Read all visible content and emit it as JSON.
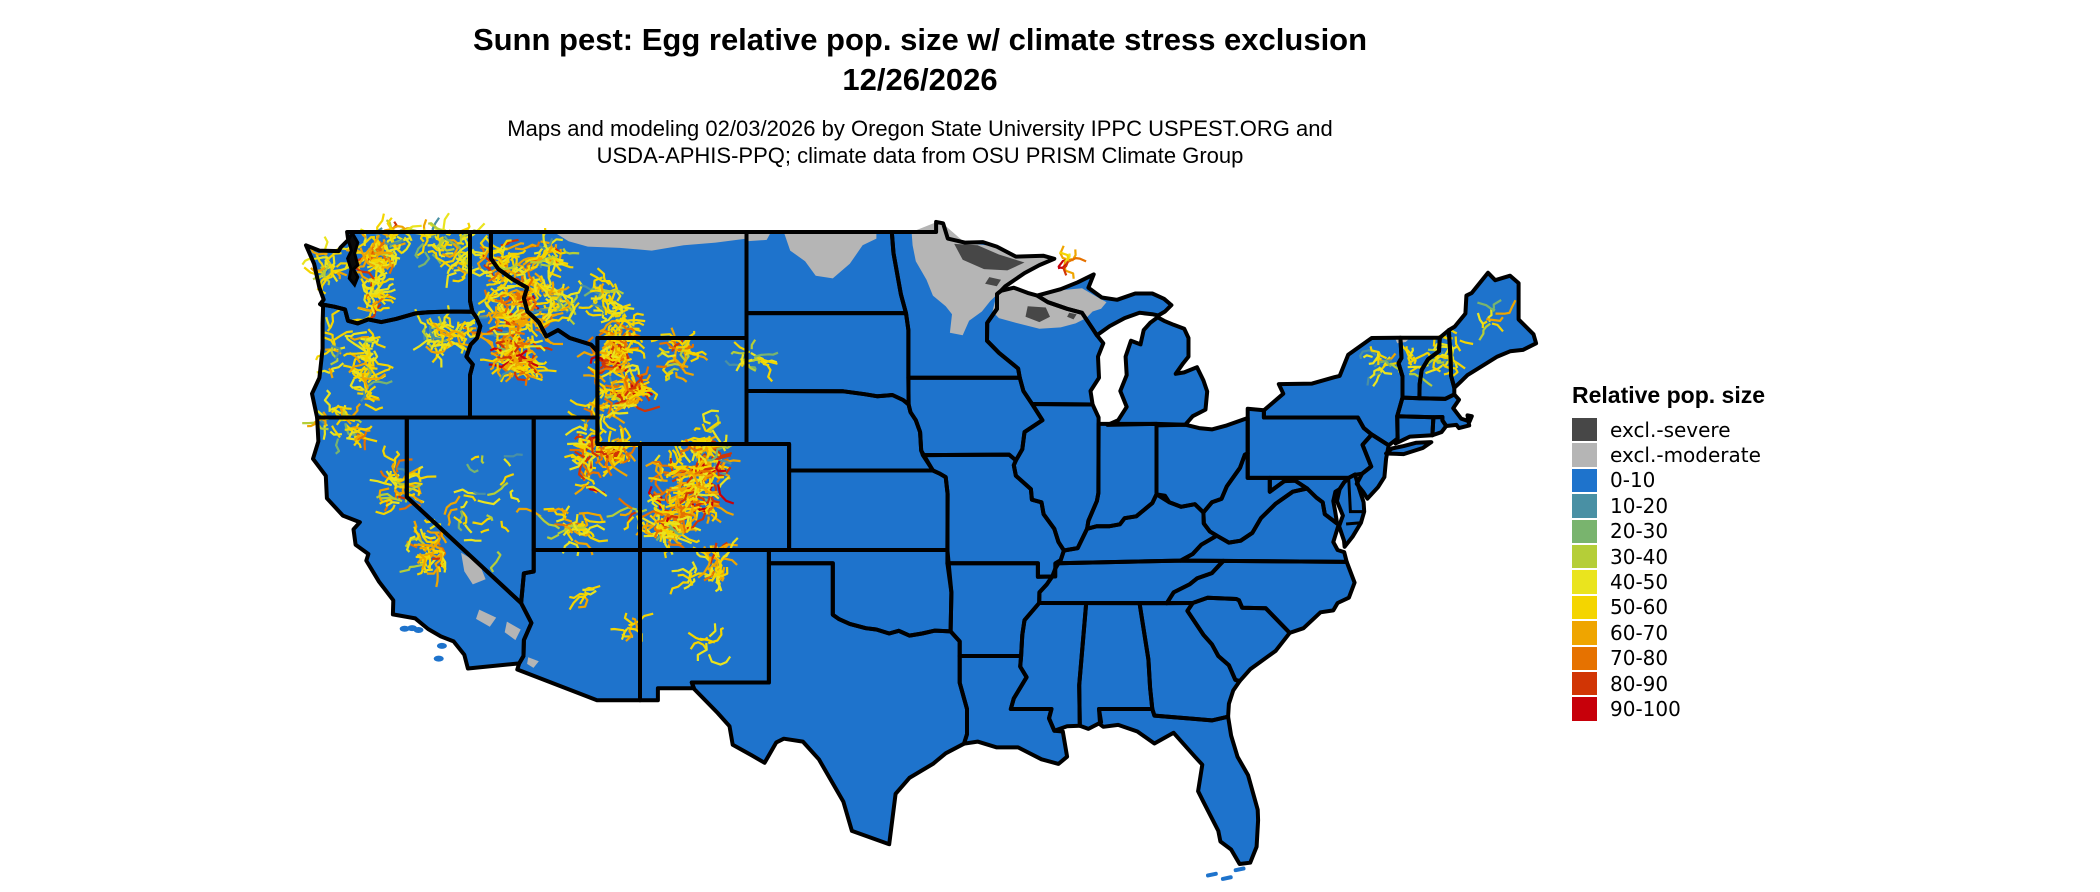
{
  "header": {
    "title_line1": "Sunn pest: Egg relative pop. size w/ climate stress exclusion",
    "title_line2": "12/26/2026",
    "subtitle_line1": "Maps and modeling 02/03/2026 by Oregon State University IPPC USPEST.ORG and",
    "subtitle_line2": "USDA-APHIS-PPQ; climate data from OSU PRISM Climate Group"
  },
  "legend": {
    "title": "Relative pop. size",
    "entries": [
      {
        "label": "excl.-severe",
        "color": "#474747"
      },
      {
        "label": "excl.-moderate",
        "color": "#b5b5b5"
      },
      {
        "label": "0-10",
        "color": "#1e73cc"
      },
      {
        "label": "10-20",
        "color": "#4990a4"
      },
      {
        "label": "20-30",
        "color": "#79b46e"
      },
      {
        "label": "30-40",
        "color": "#b5ce38"
      },
      {
        "label": "40-50",
        "color": "#eae41e"
      },
      {
        "label": "50-60",
        "color": "#f4d500"
      },
      {
        "label": "60-70",
        "color": "#efa500"
      },
      {
        "label": "70-80",
        "color": "#e67200"
      },
      {
        "label": "80-90",
        "color": "#d13505"
      },
      {
        "label": "90-100",
        "color": "#c7000a"
      }
    ]
  },
  "map": {
    "seed": 20261226,
    "land_color": "#1e73cc",
    "border_color": "#000000",
    "water_color": "#ffffff",
    "moderate_color": "#b5b5b5",
    "severe_color": "#474747",
    "exclusion_moderate": [
      [
        [
          -96.3,
          49.0
        ],
        [
          -95.15,
          49.37
        ],
        [
          -94.8,
          49.3
        ],
        [
          -93.8,
          48.6
        ],
        [
          -92.3,
          48.45
        ],
        [
          -91.4,
          48.07
        ],
        [
          -90.1,
          48.1
        ],
        [
          -89.63,
          48.0
        ],
        [
          -90.1,
          47.8
        ],
        [
          -90.9,
          47.45
        ],
        [
          -91.9,
          46.95
        ],
        [
          -92.2,
          46.7
        ],
        [
          -92.6,
          46.4
        ],
        [
          -93.0,
          46.0
        ],
        [
          -93.6,
          45.65
        ],
        [
          -93.9,
          45.1
        ],
        [
          -94.5,
          45.2
        ],
        [
          -94.4,
          45.9
        ],
        [
          -94.7,
          46.2
        ],
        [
          -95.3,
          46.6
        ],
        [
          -95.6,
          47.2
        ],
        [
          -96.1,
          47.9
        ],
        [
          -96.25,
          48.5
        ]
      ],
      [
        [
          -92.2,
          46.7
        ],
        [
          -92.35,
          46.5
        ],
        [
          -92.5,
          46.0
        ],
        [
          -92.2,
          45.75
        ],
        [
          -91.3,
          45.55
        ],
        [
          -90.3,
          45.35
        ],
        [
          -89.3,
          45.4
        ],
        [
          -88.6,
          45.55
        ],
        [
          -88.1,
          45.75
        ],
        [
          -87.8,
          46.0
        ],
        [
          -87.4,
          46.1
        ],
        [
          -87.15,
          46.35
        ],
        [
          -87.6,
          46.55
        ],
        [
          -88.3,
          46.88
        ],
        [
          -89.3,
          46.8
        ],
        [
          -90.35,
          46.58
        ],
        [
          -91.0,
          46.72
        ],
        [
          -91.6,
          46.87
        ],
        [
          -92.1,
          46.76
        ]
      ],
      [
        [
          -102.3,
          49.0
        ],
        [
          -97.95,
          49.0
        ],
        [
          -97.95,
          48.75
        ],
        [
          -98.6,
          48.5
        ],
        [
          -99.2,
          47.8
        ],
        [
          -100.0,
          47.25
        ],
        [
          -100.8,
          47.35
        ],
        [
          -101.3,
          47.9
        ],
        [
          -102.0,
          48.3
        ]
      ],
      [
        [
          -104.05,
          49.0
        ],
        [
          -102.9,
          49.0
        ],
        [
          -103.1,
          48.7
        ],
        [
          -104.05,
          48.65
        ]
      ],
      [
        [
          -113.1,
          49.0
        ],
        [
          -104.05,
          49.0
        ],
        [
          -104.05,
          48.75
        ],
        [
          -105.5,
          48.6
        ],
        [
          -107.0,
          48.5
        ],
        [
          -108.5,
          48.3
        ],
        [
          -110.0,
          48.4
        ],
        [
          -111.5,
          48.45
        ],
        [
          -112.4,
          48.65
        ]
      ],
      [
        [
          -117.45,
          36.9
        ],
        [
          -116.6,
          36.5
        ],
        [
          -116.3,
          35.9
        ],
        [
          -116.9,
          35.7
        ],
        [
          -117.3,
          36.2
        ]
      ],
      [
        [
          -116.6,
          34.75
        ],
        [
          -115.8,
          34.45
        ],
        [
          -116.1,
          34.1
        ],
        [
          -116.75,
          34.4
        ]
      ],
      [
        [
          -115.3,
          34.3
        ],
        [
          -114.65,
          34.0
        ],
        [
          -114.9,
          33.6
        ],
        [
          -115.4,
          33.9
        ]
      ],
      [
        [
          -114.3,
          32.95
        ],
        [
          -113.8,
          32.8
        ],
        [
          -114.05,
          32.55
        ],
        [
          -114.35,
          32.7
        ]
      ],
      [
        [
          -73.6,
          45.0
        ],
        [
          -72.9,
          45.0
        ],
        [
          -73.1,
          44.85
        ],
        [
          -73.5,
          44.8
        ]
      ]
    ],
    "exclusion_severe": [
      [
        [
          -94.3,
          48.55
        ],
        [
          -93.2,
          48.5
        ],
        [
          -92.2,
          48.15
        ],
        [
          -91.0,
          47.85
        ],
        [
          -91.8,
          47.55
        ],
        [
          -92.9,
          47.6
        ],
        [
          -93.9,
          47.95
        ]
      ],
      [
        [
          -92.65,
          47.3
        ],
        [
          -92.1,
          47.2
        ],
        [
          -92.3,
          46.95
        ],
        [
          -92.85,
          47.05
        ]
      ],
      [
        [
          -90.85,
          46.2
        ],
        [
          -90.0,
          46.15
        ],
        [
          -89.8,
          45.8
        ],
        [
          -90.3,
          45.6
        ],
        [
          -90.95,
          45.8
        ]
      ],
      [
        [
          -88.9,
          45.95
        ],
        [
          -88.55,
          45.9
        ],
        [
          -88.7,
          45.7
        ],
        [
          -89.0,
          45.8
        ]
      ]
    ],
    "speckle_palettes": {
      "cool": [
        [
          "#f4d500",
          0.4
        ],
        [
          "#eae41e",
          0.3
        ],
        [
          "#efa500",
          0.12
        ],
        [
          "#b5ce38",
          0.1
        ],
        [
          "#4990a4",
          0.05
        ],
        [
          "#79b46e",
          0.03
        ]
      ],
      "mid": [
        [
          "#f4d500",
          0.38
        ],
        [
          "#eae41e",
          0.22
        ],
        [
          "#efa500",
          0.2
        ],
        [
          "#e67200",
          0.1
        ],
        [
          "#b5ce38",
          0.05
        ],
        [
          "#d13505",
          0.03
        ],
        [
          "#4990a4",
          0.02
        ]
      ],
      "warm": [
        [
          "#f4d500",
          0.3
        ],
        [
          "#eae41e",
          0.15
        ],
        [
          "#efa500",
          0.25
        ],
        [
          "#e67200",
          0.15
        ],
        [
          "#d13505",
          0.08
        ],
        [
          "#c7000a",
          0.04
        ],
        [
          "#4990a4",
          0.015
        ],
        [
          "#79b46e",
          0.015
        ]
      ]
    },
    "speckle_clusters": [
      {
        "lon": -123.65,
        "lat": 47.75,
        "rlon": 0.45,
        "rlat": 0.5,
        "n": 26,
        "type": "cool"
      },
      {
        "lon": -121.35,
        "lat": 48.3,
        "rlon": 0.75,
        "rlat": 0.8,
        "n": 65,
        "type": "mid"
      },
      {
        "lon": -121.6,
        "lat": 46.6,
        "rlon": 0.45,
        "rlat": 0.7,
        "n": 35,
        "type": "mid"
      },
      {
        "lon": -120.3,
        "lat": 48.9,
        "rlon": 0.5,
        "rlat": 0.25,
        "n": 15,
        "type": "cool"
      },
      {
        "lon": -118.35,
        "lat": 48.6,
        "rlon": 1.15,
        "rlat": 0.5,
        "n": 38,
        "type": "cool"
      },
      {
        "lon": -117.5,
        "lat": 47.55,
        "rlon": 0.5,
        "rlat": 0.4,
        "n": 14,
        "type": "cool"
      },
      {
        "lon": -118.5,
        "lat": 45.05,
        "rlon": 0.85,
        "rlat": 0.55,
        "n": 38,
        "type": "cool"
      },
      {
        "lon": -117.25,
        "lat": 45.25,
        "rlon": 0.4,
        "rlat": 0.3,
        "n": 18,
        "type": "mid"
      },
      {
        "lon": -121.9,
        "lat": 43.9,
        "rlon": 0.4,
        "rlat": 1.5,
        "n": 55,
        "type": "cool"
      },
      {
        "lon": -123.6,
        "lat": 44.6,
        "rlon": 0.35,
        "rlat": 1.0,
        "n": 14,
        "type": "cool"
      },
      {
        "lon": -123.25,
        "lat": 41.75,
        "rlon": 0.8,
        "rlat": 0.65,
        "n": 28,
        "type": "cool"
      },
      {
        "lon": -122.25,
        "lat": 41.3,
        "rlon": 0.3,
        "rlat": 0.25,
        "n": 9,
        "type": "mid"
      },
      {
        "lon": -120.4,
        "lat": 39.5,
        "rlon": 0.5,
        "rlat": 1.0,
        "n": 40,
        "type": "mid"
      },
      {
        "lon": -118.95,
        "lat": 37.1,
        "rlon": 0.75,
        "rlat": 1.05,
        "n": 45,
        "type": "mid"
      },
      {
        "lon": -116.3,
        "lat": 39.0,
        "rlon": 1.6,
        "rlat": 2.3,
        "n": 26,
        "type": "cool"
      },
      {
        "lon": -114.8,
        "lat": 46.1,
        "rlon": 1.5,
        "rlat": 1.7,
        "n": 140,
        "type": "warm",
        "core": true
      },
      {
        "lon": -114.9,
        "lat": 44.15,
        "rlon": 1.0,
        "rlat": 0.7,
        "n": 75,
        "type": "warm",
        "core": true
      },
      {
        "lon": -115.7,
        "lat": 47.9,
        "rlon": 0.8,
        "rlat": 0.7,
        "n": 45,
        "type": "mid"
      },
      {
        "lon": -113.3,
        "lat": 48.35,
        "rlon": 0.7,
        "rlat": 0.55,
        "n": 35,
        "type": "mid"
      },
      {
        "lon": -112.8,
        "lat": 46.5,
        "rlon": 0.8,
        "rlat": 0.6,
        "n": 30,
        "type": "cool"
      },
      {
        "lon": -110.8,
        "lat": 46.85,
        "rlon": 0.7,
        "rlat": 0.45,
        "n": 22,
        "type": "cool"
      },
      {
        "lon": -110.35,
        "lat": 45.85,
        "rlon": 0.5,
        "rlat": 0.4,
        "n": 20,
        "type": "mid"
      },
      {
        "lon": -109.7,
        "lat": 45.2,
        "rlon": 0.65,
        "rlat": 0.35,
        "n": 25,
        "type": "mid"
      },
      {
        "lon": -110.15,
        "lat": 44.3,
        "rlon": 0.8,
        "rlat": 0.7,
        "n": 60,
        "type": "warm",
        "core": true
      },
      {
        "lon": -109.45,
        "lat": 43.1,
        "rlon": 0.6,
        "rlat": 0.6,
        "n": 55,
        "type": "warm",
        "core": true
      },
      {
        "lon": -107.35,
        "lat": 44.35,
        "rlon": 0.5,
        "rlat": 0.7,
        "n": 32,
        "type": "mid"
      },
      {
        "lon": -110.7,
        "lat": 42.6,
        "rlon": 0.4,
        "rlat": 0.75,
        "n": 28,
        "type": "mid"
      },
      {
        "lon": -105.9,
        "lat": 41.35,
        "rlon": 0.4,
        "rlat": 0.5,
        "n": 14,
        "type": "cool"
      },
      {
        "lon": -103.85,
        "lat": 44.1,
        "rlon": 0.45,
        "rlat": 0.5,
        "n": 16,
        "type": "cool"
      },
      {
        "lon": -111.6,
        "lat": 40.6,
        "rlon": 0.35,
        "rlat": 1.25,
        "n": 48,
        "type": "warm"
      },
      {
        "lon": -110.45,
        "lat": 40.68,
        "rlon": 0.85,
        "rlat": 0.3,
        "n": 42,
        "type": "warm",
        "core": true
      },
      {
        "lon": -112.3,
        "lat": 37.95,
        "rlon": 0.85,
        "rlat": 0.65,
        "n": 28,
        "type": "mid"
      },
      {
        "lon": -109.25,
        "lat": 38.45,
        "rlon": 0.2,
        "rlat": 0.25,
        "n": 7,
        "type": "mid"
      },
      {
        "lon": -105.95,
        "lat": 39.8,
        "rlon": 0.85,
        "rlat": 1.55,
        "n": 115,
        "type": "warm",
        "core": true
      },
      {
        "lon": -107.35,
        "lat": 39.2,
        "rlon": 0.95,
        "rlat": 1.25,
        "n": 85,
        "type": "warm"
      },
      {
        "lon": -107.65,
        "lat": 37.8,
        "rlon": 0.85,
        "rlat": 0.55,
        "n": 60,
        "type": "warm",
        "core": true
      },
      {
        "lon": -105.4,
        "lat": 36.6,
        "rlon": 0.35,
        "rlat": 1.0,
        "n": 30,
        "type": "mid"
      },
      {
        "lon": -106.6,
        "lat": 35.9,
        "rlon": 0.3,
        "rlat": 0.25,
        "n": 8,
        "type": "cool"
      },
      {
        "lon": -105.75,
        "lat": 33.4,
        "rlon": 0.25,
        "rlat": 0.35,
        "n": 7,
        "type": "cool"
      },
      {
        "lon": -111.65,
        "lat": 35.35,
        "rlon": 0.3,
        "rlat": 0.2,
        "n": 7,
        "type": "cool"
      },
      {
        "lon": -109.55,
        "lat": 33.95,
        "rlon": 0.4,
        "rlat": 0.25,
        "n": 8,
        "type": "cool"
      },
      {
        "lon": -88.95,
        "lat": 47.93,
        "rlon": 0.3,
        "rlat": 0.1,
        "n": 10,
        "type": "warm"
      },
      {
        "lon": -74.2,
        "lat": 44.1,
        "rlon": 0.5,
        "rlat": 0.45,
        "n": 16,
        "type": "cool"
      },
      {
        "lon": -72.85,
        "lat": 44.05,
        "rlon": 0.2,
        "rlat": 0.5,
        "n": 9,
        "type": "cool"
      },
      {
        "lon": -71.4,
        "lat": 44.2,
        "rlon": 0.35,
        "rlat": 0.3,
        "n": 14,
        "type": "cool"
      },
      {
        "lon": -70.75,
        "lat": 44.9,
        "rlon": 0.25,
        "rlat": 0.35,
        "n": 7,
        "type": "cool"
      },
      {
        "lon": -69.35,
        "lat": 45.55,
        "rlon": 0.3,
        "rlat": 0.25,
        "n": 6,
        "type": "cool"
      },
      {
        "lon": -68.9,
        "lat": 45.95,
        "rlon": 0.12,
        "rlat": 0.1,
        "n": 3,
        "type": "cool"
      }
    ],
    "channel_islands": [
      [
        -120.1,
        34.03
      ],
      [
        -119.75,
        34.05
      ],
      [
        -119.45,
        33.98
      ],
      [
        -118.35,
        33.38
      ],
      [
        -118.5,
        32.9
      ]
    ],
    "florida_keys": [
      [
        -82.2,
        24.75
      ],
      [
        -81.5,
        24.62
      ],
      [
        -80.9,
        24.95
      ]
    ],
    "puget_sound_blob": [
      [
        -122.55,
        48.95
      ],
      [
        -122.3,
        48.6
      ],
      [
        -122.45,
        48.2
      ],
      [
        -122.3,
        47.75
      ],
      [
        -122.5,
        47.6
      ],
      [
        -122.3,
        47.3
      ],
      [
        -122.45,
        47.0
      ],
      [
        -122.7,
        47.25
      ],
      [
        -122.62,
        47.6
      ],
      [
        -122.78,
        48.0
      ],
      [
        -122.6,
        48.3
      ],
      [
        -122.75,
        48.7
      ]
    ]
  }
}
